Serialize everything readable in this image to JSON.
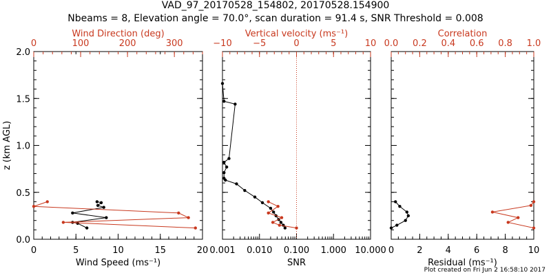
{
  "title": "VAD_97_20170528_154802, 20170528.154900",
  "subtitle": "Nbeams = 8, Elevation angle = 70.0°, scan duration = 91.4 s, SNR Threshold = 0.008",
  "credit": "Plot created on Fri Jun  2 16:58:10 2017",
  "colors": {
    "primary": "#000000",
    "secondary": "#c8381e"
  },
  "chart_data": [
    {
      "type": "line",
      "panel": "wind",
      "ylabel": "z (km AGL)",
      "ylim": [
        0,
        2
      ],
      "yticks": [
        "0.0",
        "0.5",
        "1.0",
        "1.5",
        "2.0"
      ],
      "xlabel_bottom": "Wind Speed (ms⁻¹)",
      "xlim_bottom": [
        0,
        20
      ],
      "xticks_bottom": [
        "0",
        "5",
        "10",
        "15",
        "20"
      ],
      "xlabel_top": "Wind Direction (deg)",
      "xlim_top": [
        0,
        360
      ],
      "xticks_top": [
        "0",
        "100",
        "200",
        "300"
      ],
      "series": [
        {
          "axis": "bottom",
          "color": "black",
          "points": [
            [
              6.3,
              0.12
            ],
            [
              5.2,
              0.17
            ],
            [
              4.6,
              0.18
            ],
            [
              8.6,
              0.23
            ],
            [
              4.6,
              0.28
            ],
            [
              8.3,
              0.34
            ],
            [
              7.6,
              0.36
            ],
            [
              8.0,
              0.39
            ],
            [
              7.5,
              0.4
            ]
          ]
        },
        {
          "axis": "top",
          "color": "red",
          "points": [
            [
              345,
              0.12
            ],
            [
              63,
              0.18
            ],
            [
              330,
              0.23
            ],
            [
              309,
              0.28
            ],
            [
              0,
              0.35
            ],
            [
              29,
              0.4
            ]
          ]
        }
      ]
    },
    {
      "type": "line",
      "panel": "vertical",
      "xscale": "log",
      "xlabel_bottom": "SNR",
      "xlim_bottom": [
        0.001,
        10
      ],
      "xticks_bottom": [
        "0.001",
        "0.010",
        "0.100",
        "1.000",
        "10.000"
      ],
      "xlabel_top": "Vertical velocity (ms⁻¹)",
      "xlim_top": [
        -10,
        10
      ],
      "xticks_top": [
        "−10",
        "−5",
        "0",
        "5",
        "10"
      ],
      "zero_line": 0,
      "series": [
        {
          "axis": "bottom",
          "color": "black",
          "points": [
            [
              0.049,
              0.12
            ],
            [
              0.044,
              0.15
            ],
            [
              0.038,
              0.18
            ],
            [
              0.033,
              0.21
            ],
            [
              0.028,
              0.25
            ],
            [
              0.024,
              0.29
            ],
            [
              0.02,
              0.33
            ],
            [
              0.012,
              0.39
            ],
            [
              0.0075,
              0.45
            ],
            [
              0.004,
              0.52
            ],
            [
              0.0024,
              0.59
            ],
            [
              0.0012,
              0.63
            ],
            [
              0.0011,
              0.65
            ],
            [
              0.0011,
              0.71
            ],
            [
              0.0013,
              0.77
            ],
            [
              0.0011,
              0.82
            ],
            [
              0.0015,
              0.86
            ],
            [
              0.0022,
              1.44
            ],
            [
              0.0011,
              1.47
            ],
            [
              0.001,
              1.66
            ]
          ]
        },
        {
          "axis": "top",
          "color": "red",
          "points": [
            [
              0.0,
              0.12
            ],
            [
              -2.3,
              0.15
            ],
            [
              -3.2,
              0.18
            ],
            [
              -2.0,
              0.23
            ],
            [
              -3.8,
              0.28
            ],
            [
              -2.5,
              0.35
            ],
            [
              -3.8,
              0.4
            ]
          ]
        }
      ]
    },
    {
      "type": "line",
      "panel": "residual",
      "xlabel_bottom": "Residual (ms⁻¹)",
      "xlim_bottom": [
        0,
        10
      ],
      "xticks_bottom": [
        "0",
        "2",
        "4",
        "6",
        "8",
        "10"
      ],
      "xlabel_top": "Correlation",
      "xlim_top": [
        0,
        1
      ],
      "xticks_top": [
        "0.0",
        "0.2",
        "0.4",
        "0.6",
        "0.8",
        "1.0"
      ],
      "series": [
        {
          "axis": "bottom",
          "color": "black",
          "points": [
            [
              0.0,
              0.12
            ],
            [
              0.4,
              0.15
            ],
            [
              1.0,
              0.2
            ],
            [
              1.2,
              0.25
            ],
            [
              1.1,
              0.29
            ],
            [
              0.6,
              0.35
            ],
            [
              0.3,
              0.4
            ]
          ]
        },
        {
          "axis": "top",
          "color": "red",
          "points": [
            [
              1.0,
              0.12
            ],
            [
              0.82,
              0.18
            ],
            [
              0.89,
              0.23
            ],
            [
              0.71,
              0.29
            ],
            [
              0.98,
              0.36
            ],
            [
              1.0,
              0.4
            ]
          ]
        }
      ]
    }
  ]
}
